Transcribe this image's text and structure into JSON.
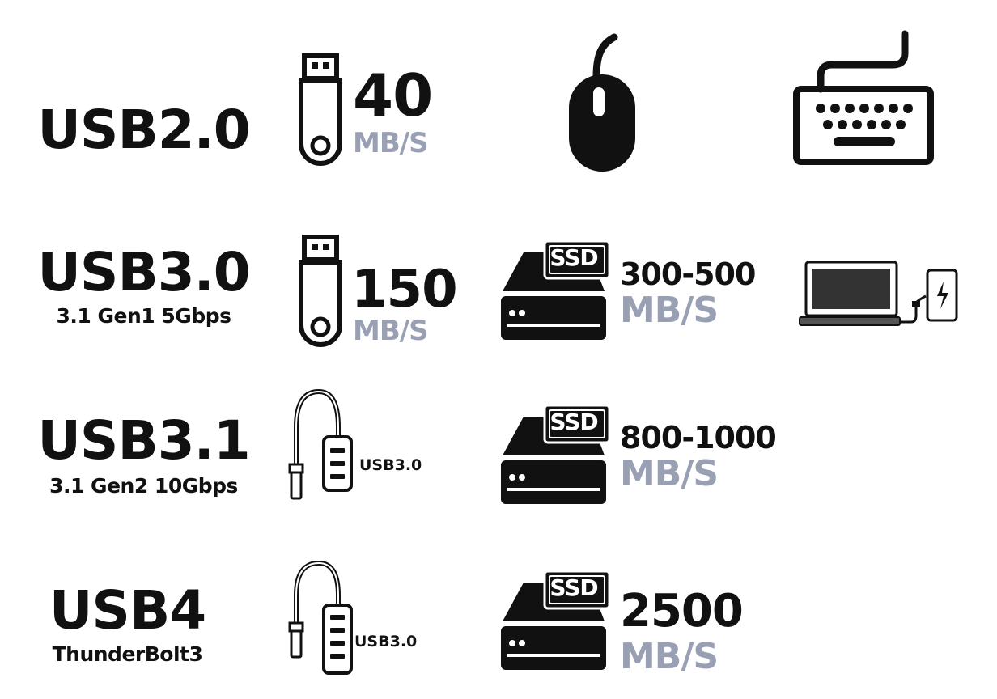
{
  "colors": {
    "ink": "#111111",
    "unit": "#9aa0b4"
  },
  "rows": [
    {
      "standard": "USB2.0",
      "subtitle": "",
      "speed": "40",
      "unit": "MB/S",
      "icons": [
        "usb-flash-drive-icon",
        "mouse-icon",
        "keyboard-icon"
      ]
    },
    {
      "standard": "USB3.0",
      "subtitle": "3.1 Gen1 5Gbps",
      "speed": "150",
      "unit": "MB/S",
      "ssd_label": "SSD",
      "ssd_speed": "300-500",
      "ssd_unit": "MB/S",
      "icons": [
        "usb-flash-drive-icon",
        "ssd-drive-icon",
        "laptop-phone-charging-icon"
      ]
    },
    {
      "standard": "USB3.1",
      "subtitle": "3.1 Gen2 10Gbps",
      "hub_label": "USB3.0",
      "ssd_label": "SSD",
      "ssd_speed": "800-1000",
      "ssd_unit": "MB/S",
      "icons": [
        "usb-hub-icon",
        "ssd-drive-icon"
      ]
    },
    {
      "standard": "USB4",
      "subtitle": "ThunderBolt3",
      "hub_label": "USB3.0",
      "ssd_label": "SSD",
      "ssd_speed": "2500",
      "ssd_unit": "MB/S",
      "icons": [
        "usb-hub-icon",
        "ssd-drive-icon"
      ]
    }
  ]
}
